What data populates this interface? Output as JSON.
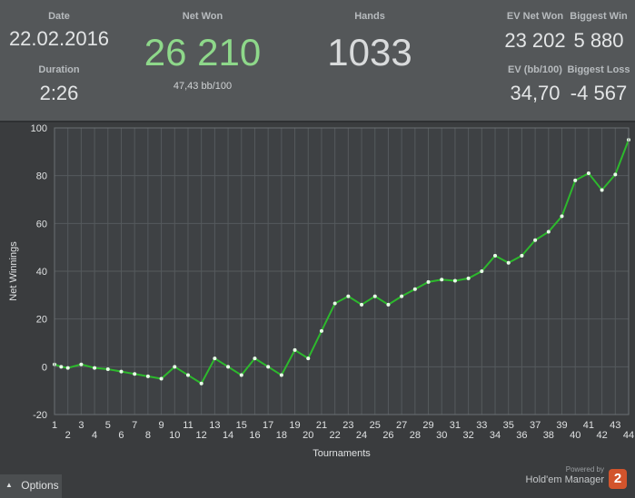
{
  "header": {
    "date_label": "Date",
    "date_value": "22.02.2016",
    "duration_label": "Duration",
    "duration_value": "2:26",
    "net_won_label": "Net Won",
    "net_won_value": "26 210",
    "net_won_bb": "47,43 bb/100",
    "hands_label": "Hands",
    "hands_value": "1033",
    "ev_net_won_label": "EV Net Won",
    "ev_net_won_value": "23 202",
    "biggest_win_label": "Biggest Win",
    "biggest_win_value": "5 880",
    "ev_bb_label": "EV (bb/100)",
    "ev_bb_value": "34,70",
    "biggest_loss_label": "Biggest Loss",
    "biggest_loss_value": "-4 567"
  },
  "colors": {
    "net_won": "#8ed88a",
    "line": "#2db92d",
    "points": "#e8ffe8",
    "plot_bg": "#3e4144",
    "grid": "#555a5d",
    "brand_logo": "#d2542c"
  },
  "footer": {
    "options_label": "Options",
    "options_icon": "caret-up-icon",
    "powered_by": "Powered by",
    "brand": "Hold'em Manager",
    "logo_text": "2"
  },
  "chart_data": {
    "type": "line",
    "title": "",
    "xlabel": "Tournaments",
    "ylabel": "Net Winnings",
    "xlim": [
      1,
      44
    ],
    "ylim": [
      -20,
      100
    ],
    "yticks": [
      -20,
      0,
      20,
      40,
      60,
      80,
      100
    ],
    "grid": true,
    "x": [
      1,
      1.5,
      2,
      3,
      4,
      5,
      6,
      7,
      8,
      9,
      10,
      11,
      12,
      13,
      14,
      15,
      16,
      17,
      18,
      19,
      20,
      21,
      22,
      23,
      24,
      25,
      26,
      27,
      28,
      29,
      30,
      31,
      32,
      33,
      34,
      35,
      36,
      37,
      38,
      39,
      40,
      41,
      42,
      43,
      44
    ],
    "series": [
      {
        "name": "",
        "values": [
          1,
          0,
          -0.5,
          1,
          -0.5,
          -1,
          -2,
          -3,
          -4,
          -5,
          0,
          -3.5,
          -7,
          3.5,
          0,
          -3.5,
          3.5,
          0,
          -3.5,
          7,
          3.5,
          15,
          26.5,
          29.5,
          26,
          29.5,
          26,
          29.5,
          32.5,
          35.5,
          36.5,
          36,
          37,
          40,
          46.5,
          43.5,
          46.5,
          53,
          56.5,
          63,
          78,
          81,
          74,
          80.5,
          95
        ]
      }
    ]
  }
}
